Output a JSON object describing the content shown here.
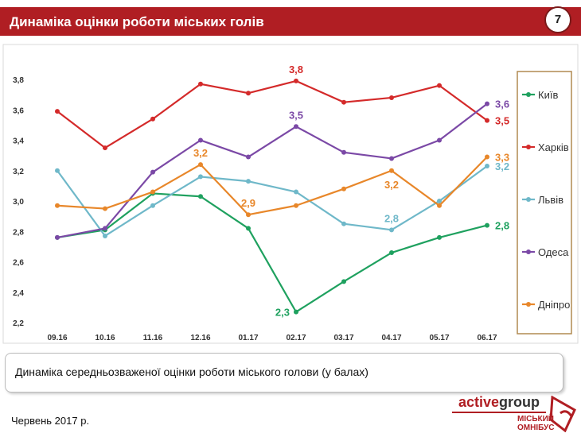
{
  "header": {
    "title": "Динаміка оцінки роботи міських голів",
    "page_number": "7"
  },
  "caption": "Динаміка  середньозваженої  оцінки  роботи  міського  голови  (у  балах)",
  "footer": {
    "date": "Червень 2017 р.",
    "brand_part1": "active",
    "brand_part2": "group",
    "omnibus_line1": "МІСЬКИЙ",
    "omnibus_line2": "ОМНІБУС"
  },
  "chart_data": {
    "type": "line",
    "categories": [
      "09.16",
      "10.16",
      "11.16",
      "12.16",
      "01.17",
      "02.17",
      "03.17",
      "04.17",
      "05.17",
      "06.17"
    ],
    "ylim": [
      2.2,
      3.8
    ],
    "yticks": [
      "2,2",
      "2,4",
      "2,6",
      "2,8",
      "3,0",
      "3,2",
      "3,4",
      "3,6",
      "3,8"
    ],
    "legend_position": "right",
    "grid": false,
    "series": [
      {
        "name": "Київ",
        "color": "#1fa15f",
        "values": [
          2.76,
          2.81,
          3.05,
          3.03,
          2.82,
          2.27,
          2.47,
          2.66,
          2.76,
          2.84
        ]
      },
      {
        "name": "Харків",
        "color": "#d42a2a",
        "values": [
          3.59,
          3.35,
          3.54,
          3.77,
          3.71,
          3.79,
          3.65,
          3.68,
          3.76,
          3.53
        ]
      },
      {
        "name": "Львів",
        "color": "#6fb8c9",
        "values": [
          3.2,
          2.77,
          2.97,
          3.16,
          3.13,
          3.06,
          2.85,
          2.81,
          3.0,
          3.23
        ]
      },
      {
        "name": "Одеса",
        "color": "#7b49a6",
        "values": [
          2.76,
          2.82,
          3.19,
          3.4,
          3.29,
          3.49,
          3.32,
          3.28,
          3.4,
          3.64
        ]
      },
      {
        "name": "Дніпро",
        "color": "#e8872a",
        "values": [
          2.97,
          2.95,
          3.06,
          3.24,
          2.91,
          2.97,
          3.08,
          3.2,
          2.97,
          3.29
        ]
      }
    ],
    "annotations": [
      {
        "text": "3,8",
        "series": 1,
        "index": 5,
        "pos": "above"
      },
      {
        "text": "3,5",
        "series": 3,
        "index": 5,
        "pos": "above"
      },
      {
        "text": "3,2",
        "series": 4,
        "index": 3,
        "pos": "above"
      },
      {
        "text": "2,9",
        "series": 4,
        "index": 4,
        "pos": "above"
      },
      {
        "text": "2,3",
        "series": 0,
        "index": 5,
        "pos": "left"
      },
      {
        "text": "2,8",
        "series": 2,
        "index": 7,
        "pos": "above"
      },
      {
        "text": "3,2",
        "series": 4,
        "index": 7,
        "pos": "below"
      },
      {
        "text": "3,6",
        "series": 3,
        "index": 9,
        "pos": "right"
      },
      {
        "text": "3,5",
        "series": 1,
        "index": 9,
        "pos": "right"
      },
      {
        "text": "3,3",
        "series": 4,
        "index": 9,
        "pos": "right"
      },
      {
        "text": "3,2",
        "series": 2,
        "index": 9,
        "pos": "right"
      },
      {
        "text": "2,8",
        "series": 0,
        "index": 9,
        "pos": "right"
      }
    ]
  }
}
